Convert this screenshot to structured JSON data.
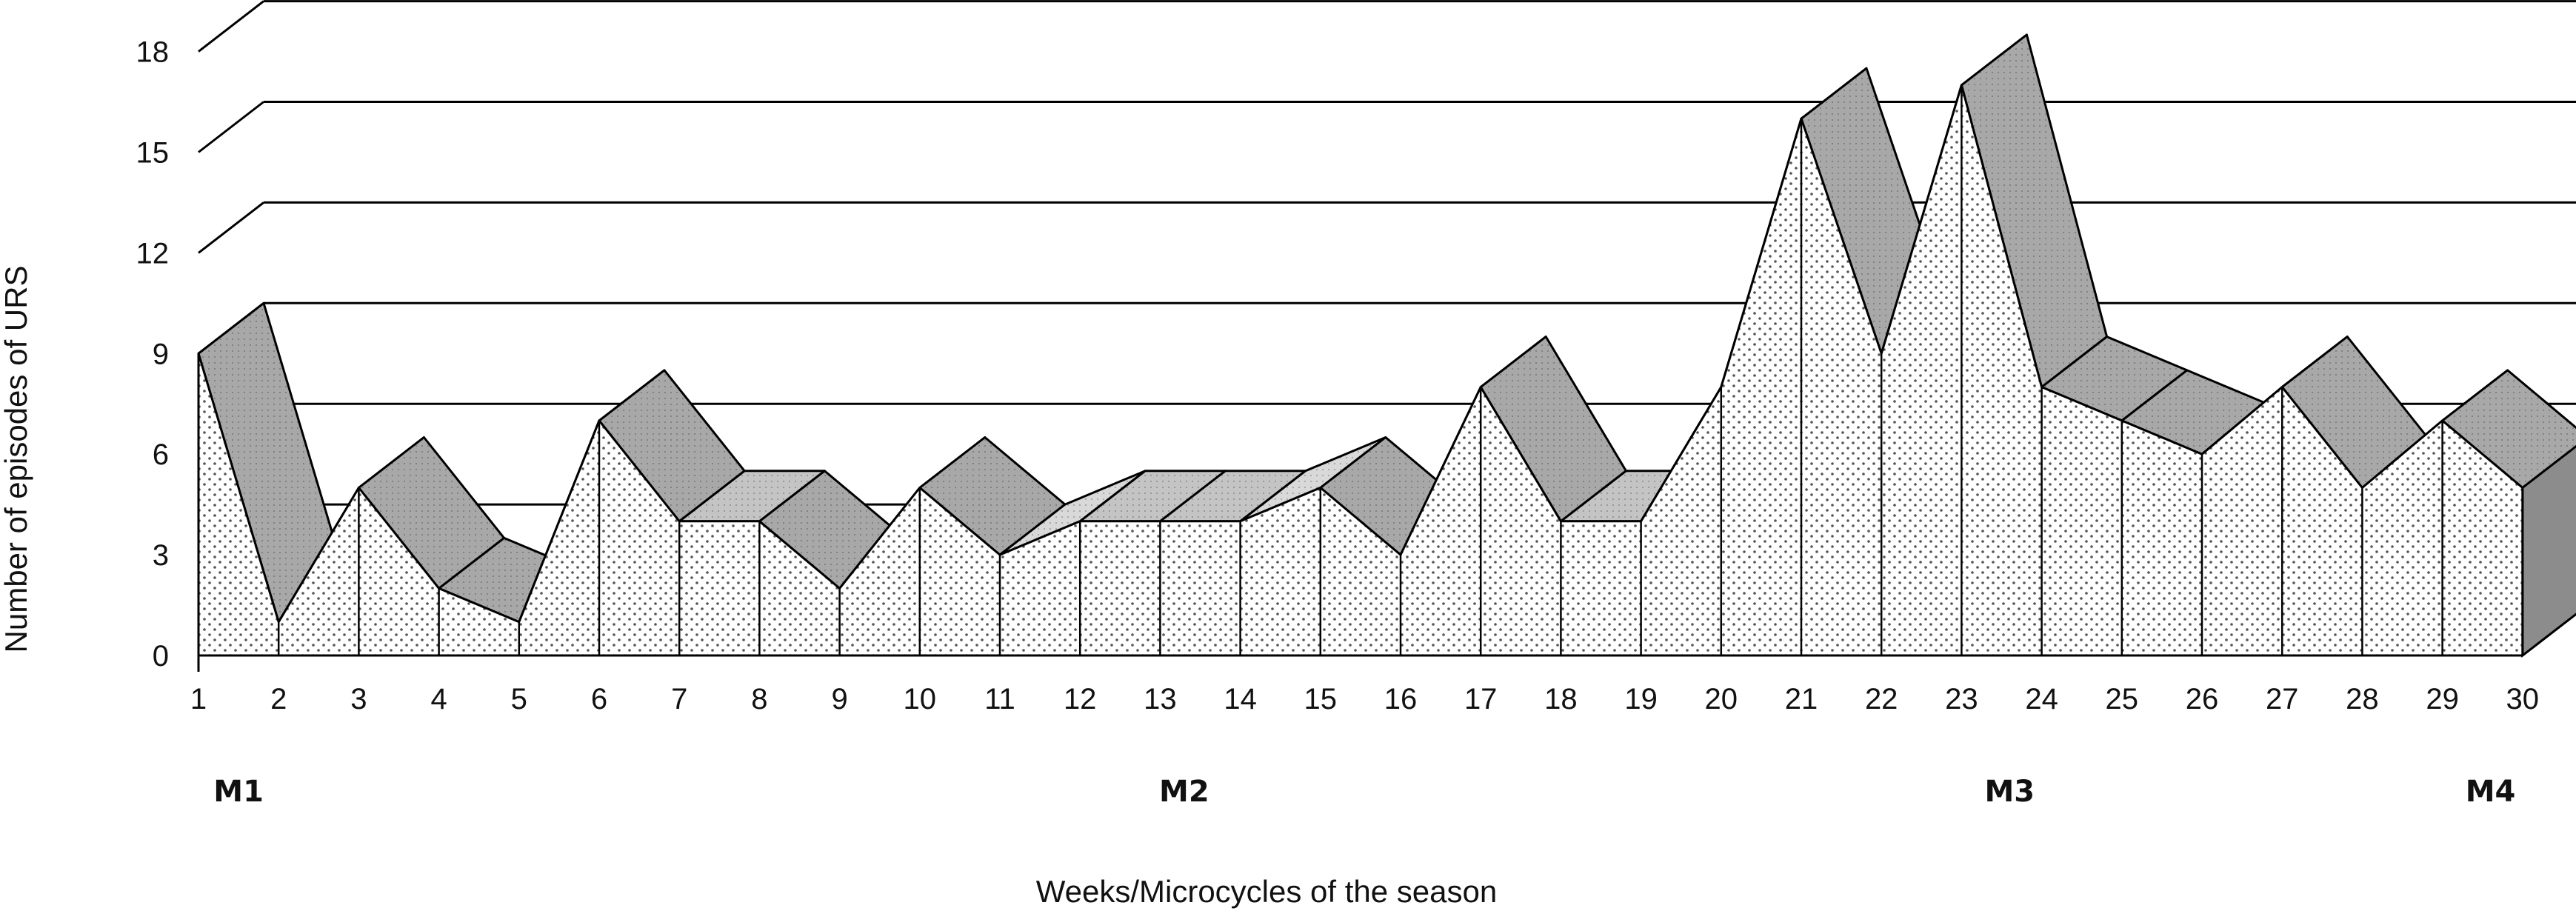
{
  "chart_data": {
    "type": "area",
    "style": "3d-ribbon",
    "title": "",
    "xlabel": "Weeks/Microcycles of the season",
    "ylabel": "Number of episodes of URS",
    "x": [
      1,
      2,
      3,
      4,
      5,
      6,
      7,
      8,
      9,
      10,
      11,
      12,
      13,
      14,
      15,
      16,
      17,
      18,
      19,
      20,
      21,
      22,
      23,
      24,
      25,
      26,
      27,
      28,
      29,
      30
    ],
    "values": [
      9,
      1,
      5,
      2,
      1,
      7,
      4,
      4,
      2,
      5,
      3,
      4,
      4,
      4,
      5,
      3,
      8,
      4,
      4,
      8,
      16,
      9,
      17,
      8,
      7,
      6,
      8,
      5,
      7,
      5
    ],
    "ylim": [
      0,
      18
    ],
    "yticks": [
      0,
      3,
      6,
      9,
      12,
      15,
      18
    ],
    "grid": true,
    "phases": [
      {
        "label": "M1",
        "week": 1.5
      },
      {
        "label": "M2",
        "week": 13.3
      },
      {
        "label": "M3",
        "week": 23.6
      },
      {
        "label": "M4",
        "week": 29.6
      }
    ]
  }
}
